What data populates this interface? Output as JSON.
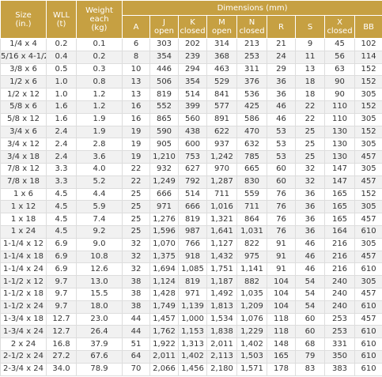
{
  "header": {
    "size": [
      "Size",
      "(in.)"
    ],
    "wll": [
      "WLL",
      "(t)"
    ],
    "weight": [
      "Weight each",
      "(kg)"
    ],
    "dimensions": "Dimensions (mm)",
    "dims": [
      [
        "A"
      ],
      [
        "J",
        "open"
      ],
      [
        "K",
        "closed"
      ],
      [
        "M",
        "open"
      ],
      [
        "N",
        "closed"
      ],
      [
        "R"
      ],
      [
        "S"
      ],
      [
        "X",
        "closed"
      ],
      [
        "BB"
      ]
    ]
  },
  "table": {
    "rows": [
      [
        "1/4 x 4",
        "0.2",
        "0.1",
        "6",
        "303",
        "202",
        "314",
        "213",
        "21",
        "9",
        "45",
        "102"
      ],
      [
        "5/16 x 4-1/2",
        "0.4",
        "0.2",
        "8",
        "354",
        "239",
        "368",
        "253",
        "24",
        "11",
        "56",
        "114"
      ],
      [
        "3/8 x 6",
        "0.5",
        "0.3",
        "10",
        "446",
        "294",
        "463",
        "311",
        "29",
        "13",
        "63",
        "152"
      ],
      [
        "1/2 x 6",
        "1.0",
        "0.8",
        "13",
        "506",
        "354",
        "529",
        "376",
        "36",
        "18",
        "90",
        "152"
      ],
      [
        "1/2 x 12",
        "1.0",
        "1.2",
        "13",
        "819",
        "514",
        "841",
        "536",
        "36",
        "18",
        "90",
        "305"
      ],
      [
        "5/8 x 6",
        "1.6",
        "1.2",
        "16",
        "552",
        "399",
        "577",
        "425",
        "46",
        "22",
        "110",
        "152"
      ],
      [
        "5/8 x 12",
        "1.6",
        "1.9",
        "16",
        "865",
        "560",
        "891",
        "586",
        "46",
        "22",
        "110",
        "305"
      ],
      [
        "3/4 x 6",
        "2.4",
        "1.9",
        "19",
        "590",
        "438",
        "622",
        "470",
        "53",
        "25",
        "130",
        "152"
      ],
      [
        "3/4 x 12",
        "2.4",
        "2.8",
        "19",
        "905",
        "600",
        "937",
        "632",
        "53",
        "25",
        "130",
        "305"
      ],
      [
        "3/4 x 18",
        "2.4",
        "3.6",
        "19",
        "1,210",
        "753",
        "1,242",
        "785",
        "53",
        "25",
        "130",
        "457"
      ],
      [
        "7/8 x 12",
        "3.3",
        "4.0",
        "22",
        "932",
        "627",
        "970",
        "665",
        "60",
        "32",
        "147",
        "305"
      ],
      [
        "7/8 x 18",
        "3.3",
        "5.2",
        "22",
        "1,249",
        "792",
        "1,287",
        "830",
        "60",
        "32",
        "147",
        "457"
      ],
      [
        "1 x 6",
        "4.5",
        "4.4",
        "25",
        "666",
        "514",
        "711",
        "559",
        "76",
        "36",
        "165",
        "152"
      ],
      [
        "1 x 12",
        "4.5",
        "5.9",
        "25",
        "971",
        "666",
        "1,016",
        "711",
        "76",
        "36",
        "165",
        "305"
      ],
      [
        "1 x 18",
        "4.5",
        "7.4",
        "25",
        "1,276",
        "819",
        "1,321",
        "864",
        "76",
        "36",
        "165",
        "457"
      ],
      [
        "1 x 24",
        "4.5",
        "9.2",
        "25",
        "1,596",
        "987",
        "1,641",
        "1,031",
        "76",
        "36",
        "164",
        "610"
      ],
      [
        "1-1/4 x 12",
        "6.9",
        "9.0",
        "32",
        "1,070",
        "766",
        "1,127",
        "822",
        "91",
        "46",
        "216",
        "305"
      ],
      [
        "1-1/4 x 18",
        "6.9",
        "10.8",
        "32",
        "1,375",
        "918",
        "1,432",
        "975",
        "91",
        "46",
        "216",
        "457"
      ],
      [
        "1-1/4 x 24",
        "6.9",
        "12.6",
        "32",
        "1,694",
        "1,085",
        "1,751",
        "1,141",
        "91",
        "46",
        "216",
        "610"
      ],
      [
        "1-1/2 x 12",
        "9.7",
        "13.0",
        "38",
        "1,124",
        "819",
        "1,187",
        "882",
        "104",
        "54",
        "240",
        "305"
      ],
      [
        "1-1/2 x 18",
        "9.7",
        "15.5",
        "38",
        "1,428",
        "971",
        "1,492",
        "1,035",
        "104",
        "54",
        "240",
        "457"
      ],
      [
        "1-1/2 x 24",
        "9.7",
        "18.0",
        "38",
        "1,749",
        "1,139",
        "1,813",
        "1,209",
        "104",
        "54",
        "240",
        "610"
      ],
      [
        "1-3/4 x 18",
        "12.7",
        "23.0",
        "44",
        "1,457",
        "1,000",
        "1,534",
        "1,076",
        "118",
        "60",
        "253",
        "457"
      ],
      [
        "1-3/4 x 24",
        "12.7",
        "26.4",
        "44",
        "1,762",
        "1,153",
        "1,838",
        "1,229",
        "118",
        "60",
        "253",
        "610"
      ],
      [
        "2 x 24",
        "16.8",
        "37.9",
        "51",
        "1,922",
        "1,313",
        "2,011",
        "1,402",
        "148",
        "68",
        "331",
        "610"
      ],
      [
        "2-1/2 x 24",
        "27.2",
        "67.6",
        "64",
        "2,011",
        "1,402",
        "2,113",
        "1,503",
        "165",
        "79",
        "350",
        "610"
      ],
      [
        "2-3/4 x 24",
        "34.0",
        "78.9",
        "70",
        "2,066",
        "1,456",
        "2,180",
        "1,571",
        "178",
        "83",
        "383",
        "610"
      ]
    ]
  }
}
